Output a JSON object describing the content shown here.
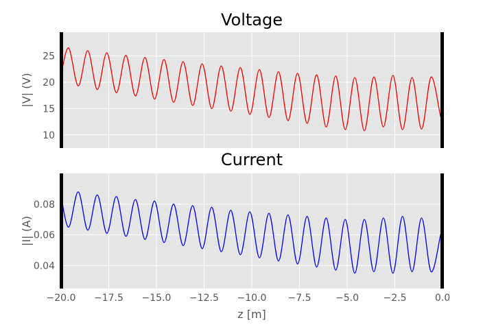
{
  "chart_data": [
    {
      "type": "line",
      "title": "Voltage",
      "xlabel": "",
      "ylabel": "|V| (V)",
      "xlim": [
        -20.0,
        0.0
      ],
      "ylim": [
        7.5,
        29.5
      ],
      "yticks": [
        "10",
        "15",
        "20",
        "25"
      ],
      "xticks": [
        "−20.0",
        "−17.5",
        "−15.0",
        "−12.5",
        "−10.0",
        "−7.5",
        "−5.0",
        "−2.5",
        "0.0"
      ],
      "x_tick_labels_shown": false,
      "grid": true,
      "background": "#e5e5e5",
      "line_color": "#ee0000",
      "series": [
        {
          "x": [
            -20.0,
            -19.6,
            -19.1,
            -18.6,
            -18.1,
            -17.6,
            -17.1,
            -16.6,
            -16.1,
            -15.6,
            -15.1,
            -14.6,
            -14.1,
            -13.6,
            -13.1,
            -12.6,
            -12.1,
            -11.6,
            -11.1,
            -10.6,
            -10.1,
            -9.6,
            -9.1,
            -8.6,
            -8.1,
            -7.6,
            -7.1,
            -6.6,
            -6.1,
            -5.6,
            -5.1,
            -4.6,
            -4.1,
            -3.6,
            -3.1,
            -2.6,
            -2.1,
            -1.6,
            -1.1,
            -0.6,
            -0.1,
            0.0
          ],
          "y": [
            21.5,
            26.5,
            19.3,
            26.0,
            18.6,
            25.6,
            18.0,
            25.1,
            17.4,
            24.7,
            16.8,
            24.3,
            16.2,
            23.9,
            15.6,
            23.5,
            15.0,
            23.1,
            14.5,
            22.8,
            13.9,
            22.4,
            13.3,
            22.0,
            12.7,
            21.7,
            12.2,
            21.4,
            11.5,
            21.2,
            11.0,
            20.9,
            10.8,
            21.0,
            11.5,
            21.3,
            11.0,
            20.9,
            11.1,
            21.0,
            13.5,
            13.5
          ]
        }
      ]
    },
    {
      "type": "line",
      "title": "Current",
      "xlabel": "z [m]",
      "ylabel": "|I| (A)",
      "xlim": [
        -20.0,
        0.0
      ],
      "ylim": [
        0.025,
        0.1
      ],
      "yticks": [
        "0.04",
        "0.06",
        "0.08"
      ],
      "xticks": [
        "−20.0",
        "−17.5",
        "−15.0",
        "−12.5",
        "−10.0",
        "−7.5",
        "−5.0",
        "−2.5",
        "0.0"
      ],
      "x_tick_labels_shown": true,
      "grid": true,
      "background": "#e5e5e5",
      "line_color": "#0000ee",
      "series": [
        {
          "x": [
            -20.0,
            -19.6,
            -19.1,
            -18.6,
            -18.1,
            -17.6,
            -17.1,
            -16.6,
            -16.1,
            -15.6,
            -15.1,
            -14.6,
            -14.1,
            -13.6,
            -13.1,
            -12.6,
            -12.1,
            -11.6,
            -11.1,
            -10.6,
            -10.1,
            -9.6,
            -9.1,
            -8.6,
            -8.1,
            -7.6,
            -7.1,
            -6.6,
            -6.1,
            -5.6,
            -5.1,
            -4.6,
            -4.1,
            -3.6,
            -3.1,
            -2.6,
            -2.1,
            -1.6,
            -1.1,
            -0.6,
            -0.1,
            0.0
          ],
          "y": [
            0.085,
            0.065,
            0.088,
            0.063,
            0.086,
            0.061,
            0.085,
            0.059,
            0.083,
            0.057,
            0.082,
            0.055,
            0.08,
            0.053,
            0.079,
            0.051,
            0.078,
            0.049,
            0.076,
            0.047,
            0.075,
            0.045,
            0.074,
            0.043,
            0.073,
            0.041,
            0.072,
            0.039,
            0.071,
            0.037,
            0.07,
            0.035,
            0.07,
            0.036,
            0.071,
            0.035,
            0.072,
            0.036,
            0.071,
            0.036,
            0.06,
            0.065
          ]
        }
      ]
    }
  ]
}
